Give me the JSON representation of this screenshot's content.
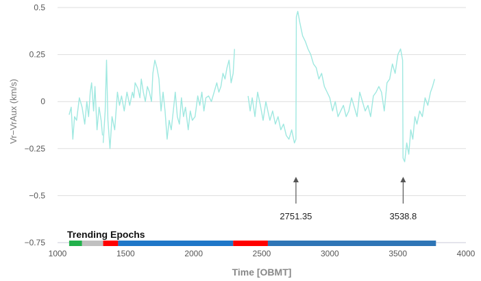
{
  "chart_data": {
    "type": "line",
    "xlabel": "Time [OBMT]",
    "ylabel": "Vr−VrAux (km/s)",
    "xlim": [
      1000,
      4000
    ],
    "ylim": [
      -0.75,
      0.5
    ],
    "xticks": [
      "1000",
      "1500",
      "2000",
      "2500",
      "3000",
      "3500",
      "4000"
    ],
    "yticks": [
      "−0.75",
      "−0.5",
      "−0.25",
      "0",
      "0.25",
      "0.5"
    ],
    "grid": true,
    "series": [
      {
        "color": "#9ee8e0",
        "segments": [
          [
            [
              1085,
              -0.07
            ],
            [
              1100,
              -0.03
            ],
            [
              1112,
              -0.2
            ],
            [
              1125,
              -0.08
            ],
            [
              1140,
              -0.1
            ],
            [
              1160,
              0.02
            ],
            [
              1180,
              -0.03
            ],
            [
              1200,
              -0.12
            ],
            [
              1215,
              0.0
            ],
            [
              1228,
              -0.08
            ],
            [
              1240,
              0.05
            ],
            [
              1250,
              0.1
            ],
            [
              1265,
              -0.05
            ],
            [
              1275,
              0.08
            ],
            [
              1290,
              -0.15
            ],
            [
              1305,
              -0.03
            ],
            [
              1320,
              -0.1
            ],
            [
              1330,
              -0.18
            ]
          ],
          [
            [
              1335,
              -0.22
            ],
            [
              1350,
              -0.05
            ],
            [
              1360,
              0.22
            ],
            [
              1370,
              -0.1
            ],
            [
              1385,
              -0.25
            ],
            [
              1400,
              -0.08
            ],
            [
              1420,
              -0.15
            ],
            [
              1440,
              0.05
            ],
            [
              1455,
              -0.02
            ],
            [
              1470,
              0.03
            ],
            [
              1490,
              -0.05
            ],
            [
              1510,
              0.05
            ],
            [
              1530,
              -0.02
            ],
            [
              1550,
              0.05
            ],
            [
              1560,
              0.02
            ],
            [
              1570,
              0.1
            ],
            [
              1590,
              0.07
            ],
            [
              1605,
              0.02
            ],
            [
              1615,
              0.12
            ],
            [
              1630,
              0.05
            ],
            [
              1645,
              0.0
            ],
            [
              1660,
              0.08
            ],
            [
              1675,
              0.05
            ],
            [
              1690,
              0.0
            ],
            [
              1700,
              0.15
            ],
            [
              1715,
              0.22
            ],
            [
              1730,
              0.18
            ],
            [
              1745,
              0.12
            ],
            [
              1760,
              -0.05
            ],
            [
              1775,
              0.05
            ],
            [
              1790,
              -0.05
            ],
            [
              1805,
              -0.2
            ],
            [
              1820,
              -0.1
            ],
            [
              1835,
              -0.15
            ],
            [
              1850,
              -0.05
            ],
            [
              1865,
              0.05
            ],
            [
              1880,
              -0.08
            ],
            [
              1895,
              -0.12
            ],
            [
              1910,
              0.02
            ],
            [
              1925,
              -0.08
            ],
            [
              1940,
              -0.03
            ],
            [
              1960,
              -0.15
            ],
            [
              1975,
              -0.05
            ],
            [
              1990,
              -0.1
            ],
            [
              2010,
              -0.08
            ],
            [
              2030,
              0.03
            ],
            [
              2045,
              -0.02
            ],
            [
              2060,
              0.05
            ],
            [
              2075,
              -0.05
            ],
            [
              2090,
              0.02
            ],
            [
              2110,
              0.03
            ],
            [
              2130,
              0.0
            ],
            [
              2150,
              0.05
            ],
            [
              2170,
              0.1
            ],
            [
              2185,
              0.05
            ],
            [
              2200,
              0.08
            ],
            [
              2215,
              0.15
            ],
            [
              2230,
              0.12
            ],
            [
              2245,
              0.18
            ],
            [
              2260,
              0.22
            ],
            [
              2275,
              0.1
            ],
            [
              2290,
              0.15
            ],
            [
              2300,
              0.28
            ]
          ],
          [
            [
              2400,
              0.03
            ],
            [
              2415,
              -0.05
            ],
            [
              2430,
              0.02
            ],
            [
              2450,
              -0.08
            ],
            [
              2470,
              0.05
            ],
            [
              2490,
              -0.02
            ],
            [
              2510,
              -0.1
            ],
            [
              2530,
              0.0
            ],
            [
              2545,
              -0.05
            ],
            [
              2560,
              -0.1
            ],
            [
              2580,
              -0.05
            ],
            [
              2600,
              -0.12
            ],
            [
              2620,
              -0.08
            ],
            [
              2640,
              -0.15
            ],
            [
              2660,
              -0.12
            ],
            [
              2680,
              -0.18
            ],
            [
              2700,
              -0.2
            ],
            [
              2720,
              -0.15
            ],
            [
              2740,
              -0.22
            ],
            [
              2751,
              -0.2
            ],
            [
              2754,
              0.45
            ],
            [
              2765,
              0.48
            ],
            [
              2780,
              0.42
            ],
            [
              2800,
              0.35
            ],
            [
              2820,
              0.32
            ],
            [
              2840,
              0.28
            ],
            [
              2860,
              0.25
            ],
            [
              2880,
              0.2
            ],
            [
              2900,
              0.18
            ],
            [
              2920,
              0.12
            ],
            [
              2940,
              0.15
            ],
            [
              2960,
              0.08
            ],
            [
              2980,
              0.05
            ],
            [
              3000,
              0.02
            ],
            [
              3020,
              -0.05
            ],
            [
              3040,
              0.0
            ],
            [
              3060,
              -0.08
            ],
            [
              3080,
              -0.05
            ],
            [
              3100,
              -0.02
            ],
            [
              3120,
              -0.08
            ],
            [
              3140,
              -0.05
            ],
            [
              3160,
              0.02
            ],
            [
              3180,
              -0.03
            ],
            [
              3200,
              -0.08
            ],
            [
              3220,
              0.05
            ],
            [
              3240,
              0.0
            ],
            [
              3260,
              -0.05
            ],
            [
              3280,
              -0.02
            ],
            [
              3300,
              -0.08
            ],
            [
              3320,
              0.03
            ],
            [
              3340,
              0.05
            ],
            [
              3360,
              0.08
            ],
            [
              3380,
              0.05
            ],
            [
              3400,
              -0.05
            ],
            [
              3420,
              0.1
            ],
            [
              3440,
              0.12
            ],
            [
              3460,
              0.2
            ],
            [
              3480,
              0.15
            ],
            [
              3500,
              0.25
            ],
            [
              3520,
              0.28
            ],
            [
              3535,
              0.22
            ],
            [
              3538,
              -0.3
            ],
            [
              3550,
              -0.32
            ],
            [
              3565,
              -0.22
            ],
            [
              3580,
              -0.28
            ],
            [
              3595,
              -0.15
            ],
            [
              3610,
              -0.2
            ],
            [
              3625,
              -0.08
            ],
            [
              3640,
              -0.12
            ],
            [
              3660,
              -0.05
            ],
            [
              3680,
              -0.08
            ],
            [
              3700,
              0.02
            ],
            [
              3720,
              -0.02
            ],
            [
              3740,
              0.05
            ],
            [
              3755,
              0.08
            ],
            [
              3770,
              0.12
            ]
          ]
        ]
      }
    ],
    "annotations": [
      {
        "label": "2751.35",
        "x": 2751.35,
        "y": -0.5
      },
      {
        "label": "3538.8",
        "x": 3538.8,
        "y": -0.5
      }
    ],
    "trending_epochs": {
      "title": "Trending Epochs",
      "bands": [
        {
          "x0": 1085,
          "x1": 1180,
          "color": "#22b14c"
        },
        {
          "x0": 1180,
          "x1": 1335,
          "color": "#c0c0c0"
        },
        {
          "x0": 1335,
          "x1": 1445,
          "color": "#ff0000"
        },
        {
          "x0": 1445,
          "x1": 2290,
          "color": "#1f77c8"
        },
        {
          "x0": 2290,
          "x1": 2545,
          "color": "#ff0000"
        },
        {
          "x0": 2545,
          "x1": 3780,
          "color": "#2e75b6"
        }
      ]
    }
  }
}
